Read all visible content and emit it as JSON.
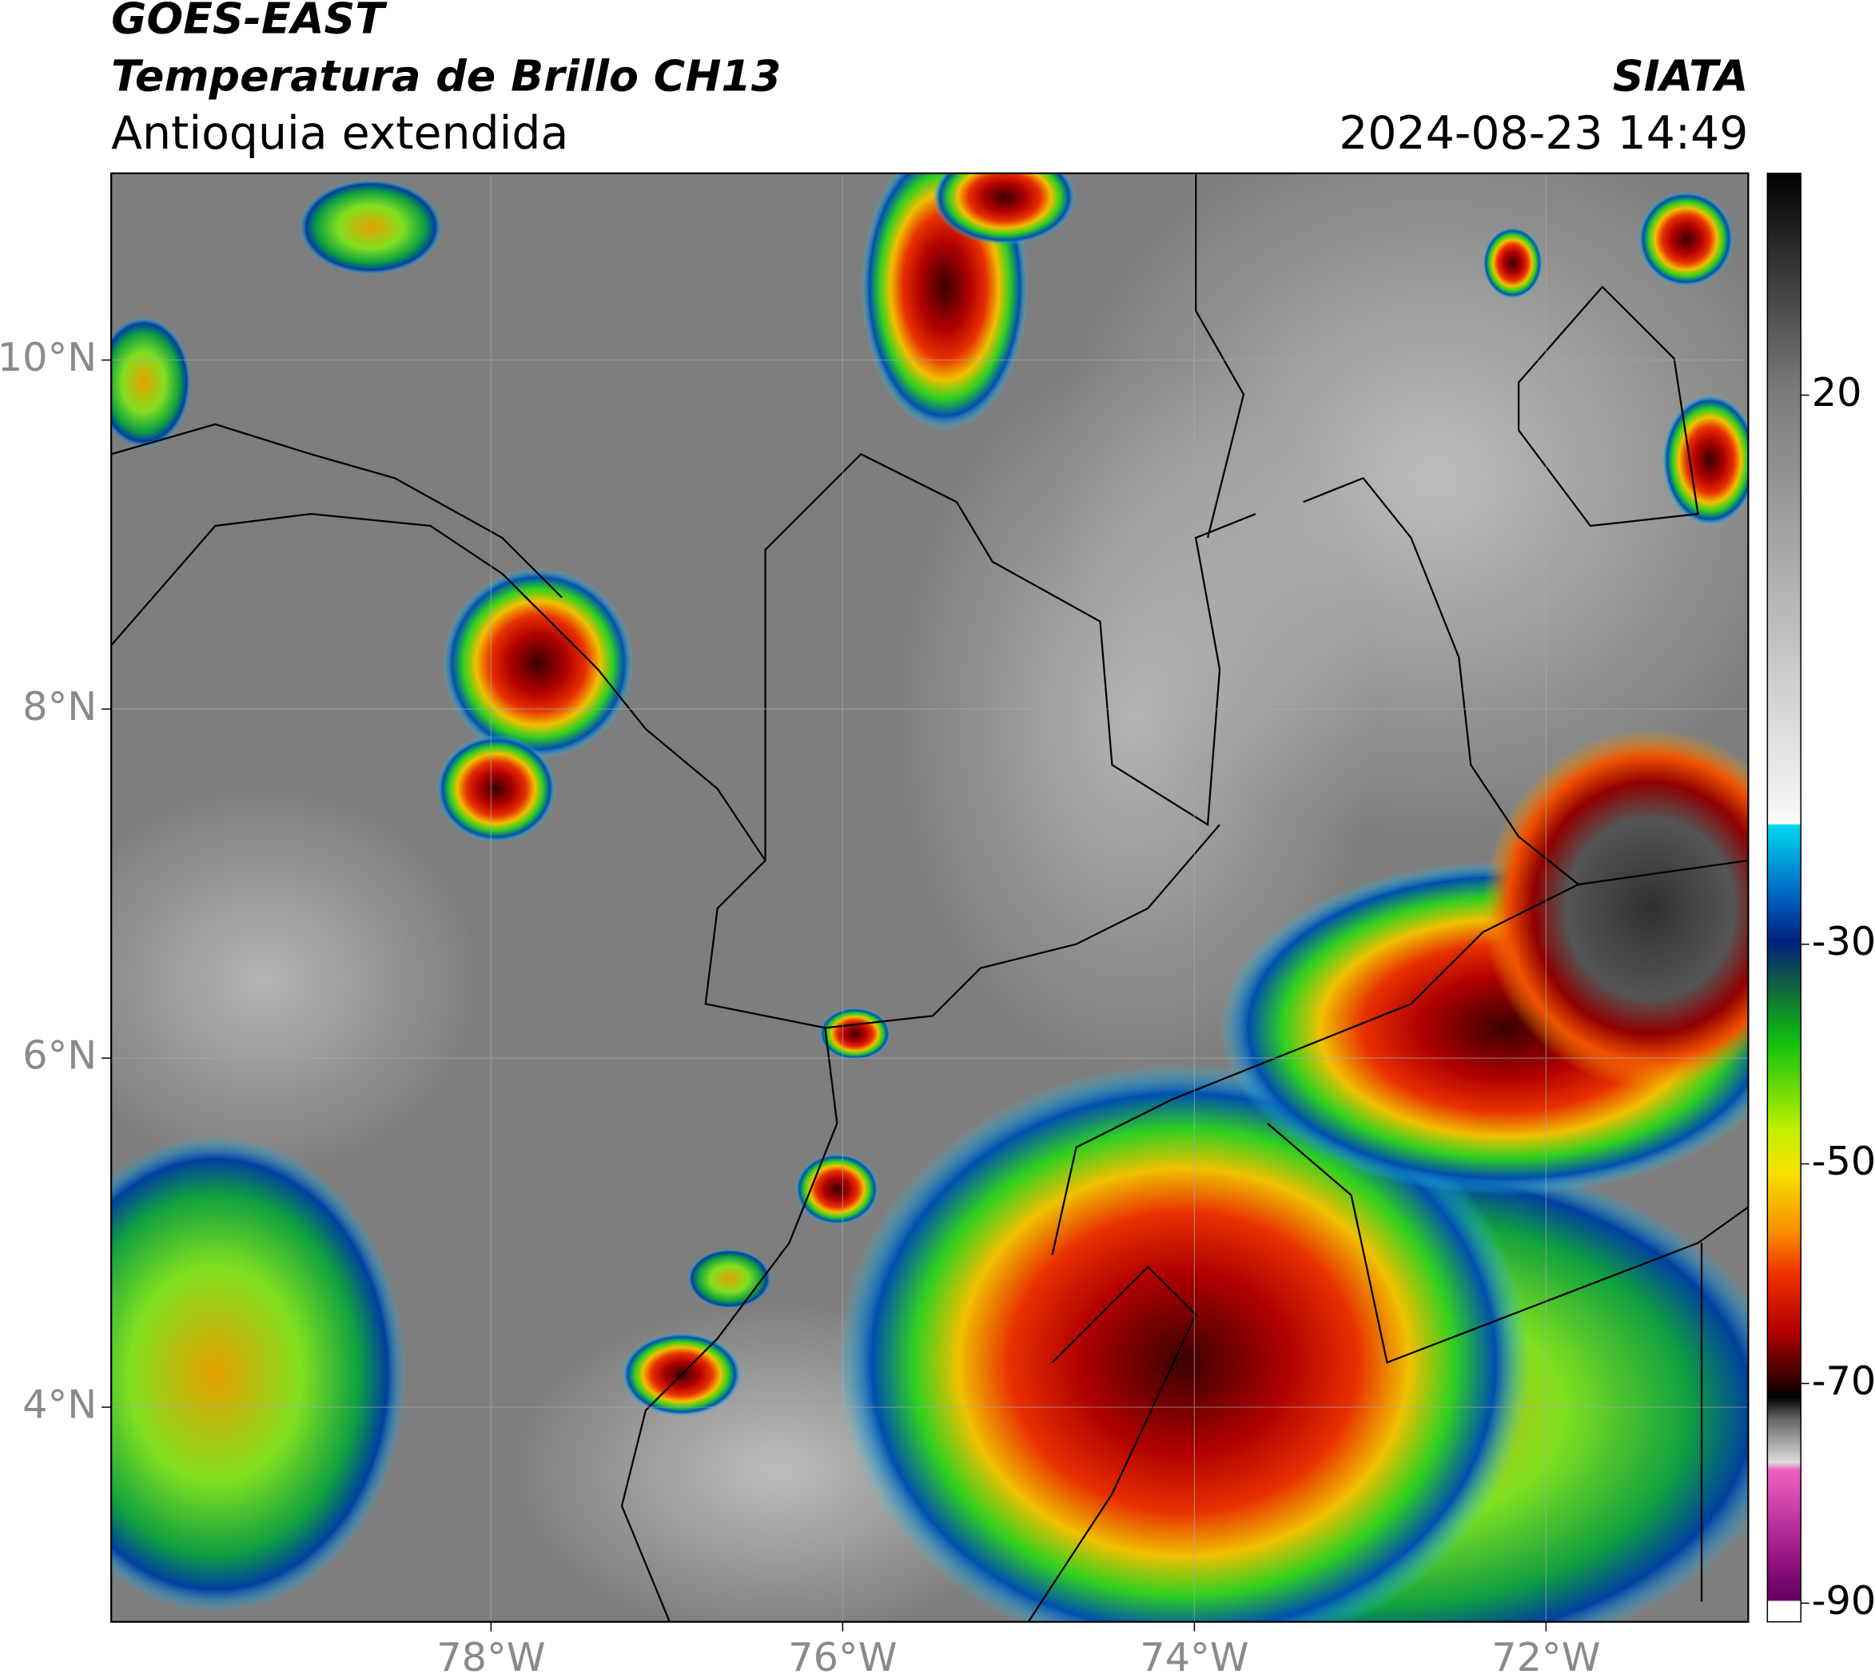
{
  "header": {
    "title": "GOES-EAST",
    "subtitle": "Temperatura de Brillo CH13",
    "region": "Antioquia extendida",
    "source": "SIATA",
    "datetime": "2024-08-23 14:49"
  },
  "map": {
    "xlim": [
      -80.16,
      -70.85
    ],
    "ylim": [
      2.77,
      11.07
    ],
    "xticks": [
      {
        "value": -78,
        "label": "78°W"
      },
      {
        "value": -76,
        "label": "76°W"
      },
      {
        "value": -74,
        "label": "74°W"
      },
      {
        "value": -72,
        "label": "72°W"
      }
    ],
    "yticks": [
      {
        "value": 10,
        "label": "10°N"
      },
      {
        "value": 8,
        "label": "8°N"
      },
      {
        "value": 6,
        "label": "6°N"
      },
      {
        "value": 4,
        "label": "4°N"
      }
    ]
  },
  "colorbar": {
    "lim": [
      -91.7,
      40.2
    ],
    "ticks": [
      20,
      -30,
      -50,
      -70,
      -90
    ]
  }
}
